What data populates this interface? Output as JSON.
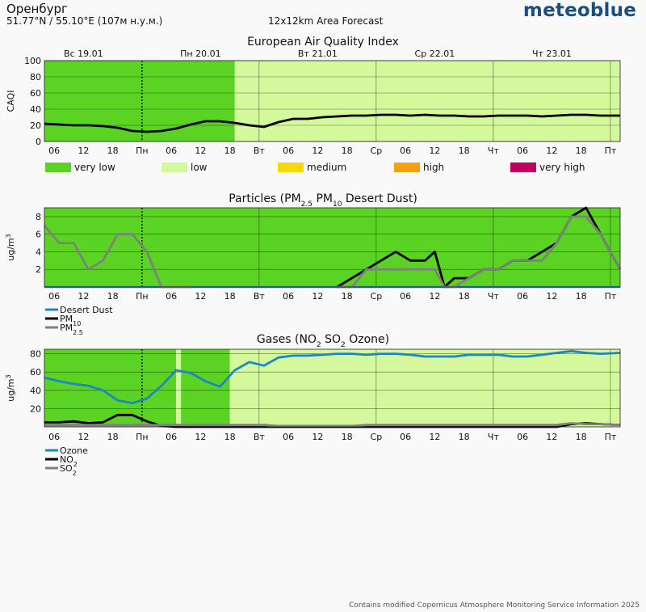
{
  "header": {
    "location": "Оренбург",
    "coords": "51.77°N / 55.10°E (107м н.у.м.)",
    "forecast": "12x12km Area Forecast",
    "brand": "meteoblue"
  },
  "footer": "Contains modified Copernicus Atmosphere Monitoring Service Information 2025",
  "colors": {
    "very_low": "#5ad322",
    "low": "#d4f89c",
    "medium": "#f5d90a",
    "high": "#f5a00f",
    "very_high": "#c0045a",
    "dust": "#1f86c6",
    "pm10": "#000000",
    "pm25": "#808080",
    "ozone": "#1f86c6",
    "no2": "#000000",
    "so2": "#808080"
  },
  "days": [
    "Вс 19.01",
    "Пн 20.01",
    "Вт 21.01",
    "Ср 22.01",
    "Чт 23.01"
  ],
  "x_ticks": [
    "06",
    "12",
    "18",
    "Пн",
    "06",
    "12",
    "18",
    "Вт",
    "06",
    "12",
    "18",
    "Ср",
    "06",
    "12",
    "18",
    "Чт",
    "06",
    "12",
    "18",
    "Пт"
  ],
  "chart_data": [
    {
      "type": "line",
      "title": "European Air Quality Index",
      "ylabel": "CAQI",
      "ylim": [
        0,
        100
      ],
      "yticks": [
        0,
        20,
        40,
        60,
        80,
        100
      ],
      "x_unit": "hours from Вс 19.01 00:00",
      "xlim": [
        4,
        122
      ],
      "background_bands": [
        {
          "from": 4,
          "to": 43,
          "category": "very low"
        },
        {
          "from": 43,
          "to": 122,
          "category": "low"
        }
      ],
      "legend": [
        {
          "label": "very low",
          "color": "#5ad322"
        },
        {
          "label": "low",
          "color": "#d4f89c"
        },
        {
          "label": "medium",
          "color": "#f5d90a"
        },
        {
          "label": "high",
          "color": "#f5a00f"
        },
        {
          "label": "very high",
          "color": "#c0045a"
        }
      ],
      "series": [
        {
          "color": "#000000",
          "x": [
            4,
            7,
            10,
            13,
            16,
            19,
            22,
            25,
            28,
            31,
            34,
            37,
            40,
            43,
            46,
            49,
            52,
            55,
            58,
            61,
            64,
            67,
            70,
            73,
            76,
            79,
            82,
            85,
            88,
            91,
            94,
            97,
            100,
            103,
            106,
            109,
            112,
            115,
            118,
            122
          ],
          "values": [
            22,
            21,
            20,
            20,
            19,
            17,
            13,
            12,
            13,
            16,
            21,
            25,
            25,
            23,
            20,
            18,
            24,
            28,
            28,
            30,
            31,
            32,
            32,
            33,
            33,
            32,
            33,
            32,
            32,
            31,
            31,
            32,
            32,
            32,
            31,
            32,
            33,
            33,
            32,
            32
          ]
        }
      ]
    },
    {
      "type": "line",
      "title": "Particles (PM2.5 PM10 Desert Dust)",
      "ylabel": "ug/m3",
      "ylim": [
        0,
        9
      ],
      "yticks": [
        2,
        4,
        6,
        8
      ],
      "x_unit": "hours from Вс 19.01 00:00",
      "xlim": [
        4,
        122
      ],
      "background_bands": [
        {
          "from": 4,
          "to": 122,
          "category": "very low"
        }
      ],
      "series": [
        {
          "name": "Desert Dust",
          "color": "#1f86c6",
          "x": [
            4,
            122
          ],
          "values": [
            0,
            0
          ]
        },
        {
          "name": "PM10",
          "color": "#000000",
          "x": [
            64,
            67,
            70,
            73,
            76,
            79,
            82,
            84,
            86,
            88,
            91,
            94,
            97,
            100,
            103,
            106,
            109,
            112,
            115,
            118,
            122
          ],
          "values": [
            0,
            1,
            2,
            3,
            4,
            3,
            3,
            4,
            0,
            1,
            1,
            2,
            2,
            3,
            3,
            4,
            5,
            8,
            9,
            6,
            2
          ]
        },
        {
          "name": "PM2.5",
          "color": "#808080",
          "x": [
            4,
            7,
            10,
            13,
            16,
            19,
            22,
            25,
            28,
            31,
            34
          ],
          "values": [
            7,
            5,
            5,
            2,
            3,
            6,
            6,
            4,
            0,
            0,
            0
          ]
        },
        {
          "name": "PM2.5",
          "color": "#808080",
          "x": [
            64,
            67,
            70,
            73,
            76,
            79,
            82,
            84,
            86,
            88,
            91,
            94,
            97,
            100,
            103,
            106,
            109,
            112,
            115,
            118,
            122
          ],
          "values": [
            0,
            0,
            2,
            2,
            2,
            2,
            2,
            2,
            0,
            0,
            1,
            2,
            2,
            3,
            3,
            3,
            5,
            8,
            8,
            6,
            2
          ]
        }
      ]
    },
    {
      "type": "line",
      "title": "Gases (NO2 SO2 Ozone)",
      "ylabel": "ug/m3",
      "ylim": [
        0,
        85
      ],
      "yticks": [
        20,
        40,
        60,
        80
      ],
      "x_unit": "hours from Вс 19.01 00:00",
      "xlim": [
        4,
        122
      ],
      "background_bands": [
        {
          "from": 4,
          "to": 31,
          "category": "very low"
        },
        {
          "from": 31,
          "to": 32,
          "category": "low"
        },
        {
          "from": 32,
          "to": 42,
          "category": "very low"
        },
        {
          "from": 42,
          "to": 122,
          "category": "low"
        }
      ],
      "series": [
        {
          "name": "Ozone",
          "color": "#1f86c6",
          "x": [
            4,
            7,
            10,
            13,
            16,
            19,
            22,
            25,
            28,
            31,
            34,
            37,
            40,
            43,
            46,
            49,
            52,
            55,
            58,
            61,
            64,
            67,
            70,
            73,
            76,
            79,
            82,
            85,
            88,
            91,
            94,
            97,
            100,
            103,
            106,
            109,
            112,
            115,
            118,
            122
          ],
          "values": [
            54,
            50,
            47,
            45,
            40,
            29,
            26,
            31,
            45,
            62,
            59,
            50,
            44,
            62,
            71,
            67,
            76,
            78,
            78,
            79,
            80,
            80,
            79,
            80,
            80,
            79,
            77,
            77,
            77,
            79,
            79,
            79,
            77,
            77,
            79,
            81,
            83,
            81,
            80,
            81
          ]
        },
        {
          "name": "NO2",
          "color": "#000000",
          "x": [
            4,
            7,
            10,
            13,
            16,
            19,
            22,
            25,
            28,
            31,
            34,
            37,
            40,
            43,
            46,
            49,
            52,
            55,
            58,
            61,
            64,
            67,
            70,
            73,
            76,
            79,
            82,
            85,
            88,
            91,
            94,
            97,
            100,
            103,
            106,
            109,
            112,
            115,
            118,
            122
          ],
          "values": [
            5,
            5,
            6,
            4,
            5,
            13,
            13,
            6,
            1,
            0,
            0,
            0,
            0,
            0,
            0,
            0,
            0,
            0,
            0,
            0,
            0,
            0,
            0,
            0,
            0,
            0,
            0,
            0,
            0,
            0,
            0,
            0,
            0,
            0,
            0,
            0,
            3,
            4,
            3,
            2
          ]
        },
        {
          "name": "SO2",
          "color": "#808080",
          "x": [
            4,
            7,
            10,
            13,
            16,
            19,
            22,
            25,
            28,
            31,
            34,
            37,
            40,
            43,
            46,
            49,
            52,
            55,
            58,
            61,
            64,
            67,
            70,
            73,
            76,
            79,
            82,
            85,
            88,
            91,
            94,
            97,
            100,
            103,
            106,
            109,
            112,
            115,
            118,
            122
          ],
          "values": [
            2,
            2,
            2,
            2,
            2,
            2,
            2,
            2,
            2,
            2,
            2,
            2,
            2,
            2,
            2,
            2,
            1,
            1,
            1,
            1,
            1,
            1,
            2,
            2,
            2,
            2,
            2,
            2,
            2,
            2,
            2,
            2,
            2,
            2,
            2,
            2,
            4,
            3,
            3,
            2
          ]
        }
      ]
    }
  ]
}
